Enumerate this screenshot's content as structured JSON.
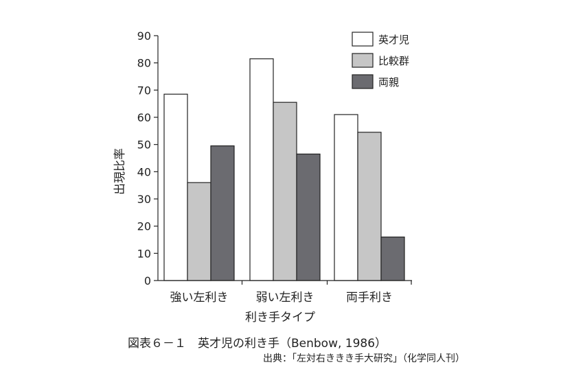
{
  "chart_data": {
    "type": "bar",
    "categories": [
      "強い左利き",
      "弱い左利き",
      "両手利き"
    ],
    "series": [
      {
        "name": "英才児",
        "values": [
          68.5,
          81.5,
          61
        ],
        "color": "#ffffff"
      },
      {
        "name": "比較群",
        "values": [
          36,
          65.5,
          54.5
        ],
        "color": "#c6c6c6"
      },
      {
        "name": "両親",
        "values": [
          49.5,
          46.5,
          16
        ],
        "color": "#6b6b70"
      }
    ],
    "xlabel": "利き手タイプ",
    "ylabel": "出現比率",
    "ylim": [
      0,
      90
    ],
    "yticks": [
      0,
      10,
      20,
      30,
      40,
      50,
      60,
      70,
      80,
      90
    ],
    "grid": false,
    "legend_position": "top-right"
  },
  "caption": "図表６－１　英才児の利き手（Benbow, 1986）",
  "source": "出典：「左対右ききき手大研究」（化学同人刊）"
}
